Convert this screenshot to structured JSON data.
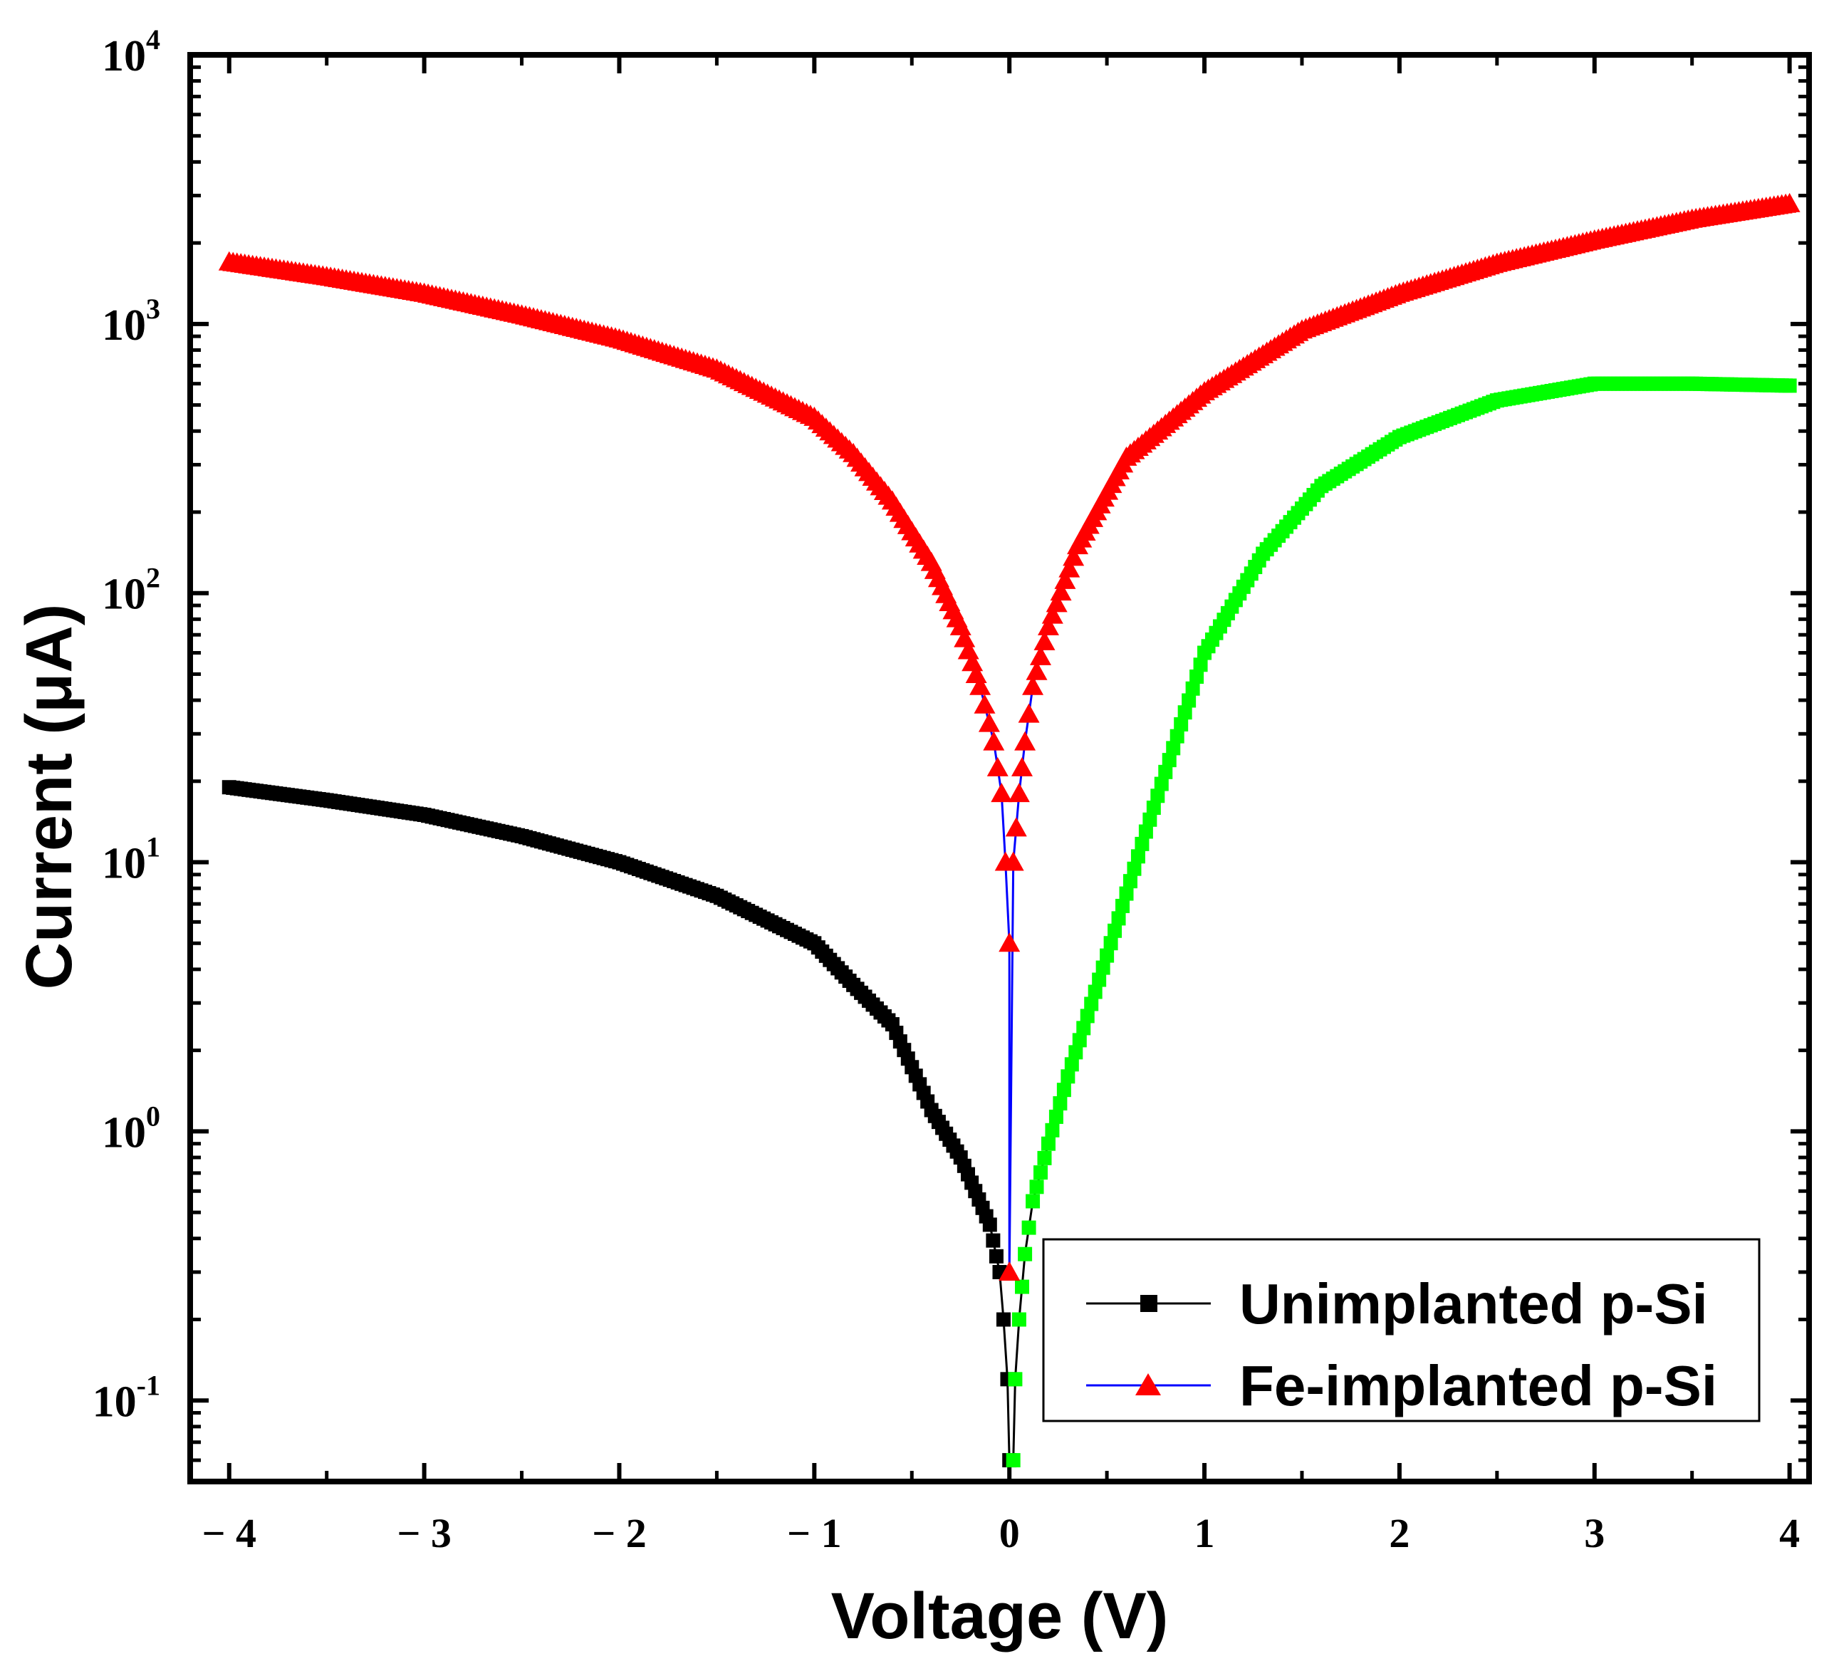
{
  "chart_data": {
    "type": "scatter",
    "title": "",
    "xlabel": "Voltage (V)",
    "ylabel": "Current (μA)",
    "xscale": "linear",
    "yscale": "log",
    "xlim": [
      -4.2,
      4.1
    ],
    "ylim": [
      0.05,
      10000
    ],
    "x_ticks": [
      -4,
      -3,
      -2,
      -1,
      0,
      1,
      2,
      3,
      4
    ],
    "x_tick_labels": [
      "− 4",
      "− 3",
      "− 2",
      "− 1",
      "0",
      "1",
      "2",
      "3",
      "4"
    ],
    "y_ticks": [
      {
        "value": 0.1,
        "base": "10",
        "exp": "-1"
      },
      {
        "value": 1,
        "base": "10",
        "exp": "0"
      },
      {
        "value": 10,
        "base": "10",
        "exp": "1"
      },
      {
        "value": 100,
        "base": "10",
        "exp": "2"
      },
      {
        "value": 1000,
        "base": "10",
        "exp": "3"
      },
      {
        "value": 10000,
        "base": "10",
        "exp": "4"
      }
    ],
    "legend_position": "bottom-right",
    "series": [
      {
        "name": "Unimplanted p-Si",
        "marker": "square",
        "line_color": "#000000",
        "marker_color_negative": "#000000",
        "marker_color_positive": "#00ff00",
        "points": [
          [
            -4.0,
            19.0
          ],
          [
            -3.5,
            17.0
          ],
          [
            -3.0,
            15.0
          ],
          [
            -2.5,
            12.5
          ],
          [
            -2.0,
            10.0
          ],
          [
            -1.5,
            7.5
          ],
          [
            -1.0,
            5.0
          ],
          [
            -0.8,
            3.5
          ],
          [
            -0.6,
            2.5
          ],
          [
            -0.4,
            1.2
          ],
          [
            -0.25,
            0.8
          ],
          [
            -0.1,
            0.45
          ],
          [
            -0.05,
            0.3
          ],
          [
            -0.03,
            0.2
          ],
          [
            -0.01,
            0.12
          ],
          [
            0.0,
            0.06
          ],
          [
            0.02,
            0.06
          ],
          [
            0.03,
            0.12
          ],
          [
            0.05,
            0.2
          ],
          [
            0.08,
            0.35
          ],
          [
            0.12,
            0.55
          ],
          [
            0.2,
            0.9
          ],
          [
            0.3,
            1.6
          ],
          [
            0.5,
            4.5
          ],
          [
            0.7,
            13.0
          ],
          [
            1.0,
            60.0
          ],
          [
            1.3,
            140.0
          ],
          [
            1.6,
            250.0
          ],
          [
            2.0,
            380.0
          ],
          [
            2.5,
            520.0
          ],
          [
            3.0,
            600.0
          ],
          [
            3.5,
            600.0
          ],
          [
            4.0,
            590.0
          ]
        ]
      },
      {
        "name": "Fe-implanted p-Si",
        "marker": "triangle",
        "line_color": "#0000ff",
        "marker_color_negative": "#ff0000",
        "marker_color_positive": "#ff0000",
        "points": [
          [
            -4.0,
            1700.0
          ],
          [
            -3.5,
            1500.0
          ],
          [
            -3.0,
            1300.0
          ],
          [
            -2.5,
            1080.0
          ],
          [
            -2.0,
            880.0
          ],
          [
            -1.5,
            680.0
          ],
          [
            -1.0,
            450.0
          ],
          [
            -0.8,
            330.0
          ],
          [
            -0.6,
            220.0
          ],
          [
            -0.4,
            130.0
          ],
          [
            -0.25,
            75.0
          ],
          [
            -0.15,
            45.0
          ],
          [
            -0.08,
            28.0
          ],
          [
            -0.04,
            18.0
          ],
          [
            -0.02,
            10.0
          ],
          [
            0.0,
            5.0
          ],
          [
            0.0,
            0.3
          ],
          [
            0.02,
            10.0
          ],
          [
            0.05,
            18.0
          ],
          [
            0.08,
            28.0
          ],
          [
            0.12,
            45.0
          ],
          [
            0.2,
            75.0
          ],
          [
            0.35,
            150.0
          ],
          [
            0.6,
            320.0
          ],
          [
            1.0,
            560.0
          ],
          [
            1.5,
            950.0
          ],
          [
            2.0,
            1300.0
          ],
          [
            2.5,
            1680.0
          ],
          [
            3.0,
            2050.0
          ],
          [
            3.5,
            2450.0
          ],
          [
            4.0,
            2800.0
          ]
        ]
      }
    ]
  }
}
